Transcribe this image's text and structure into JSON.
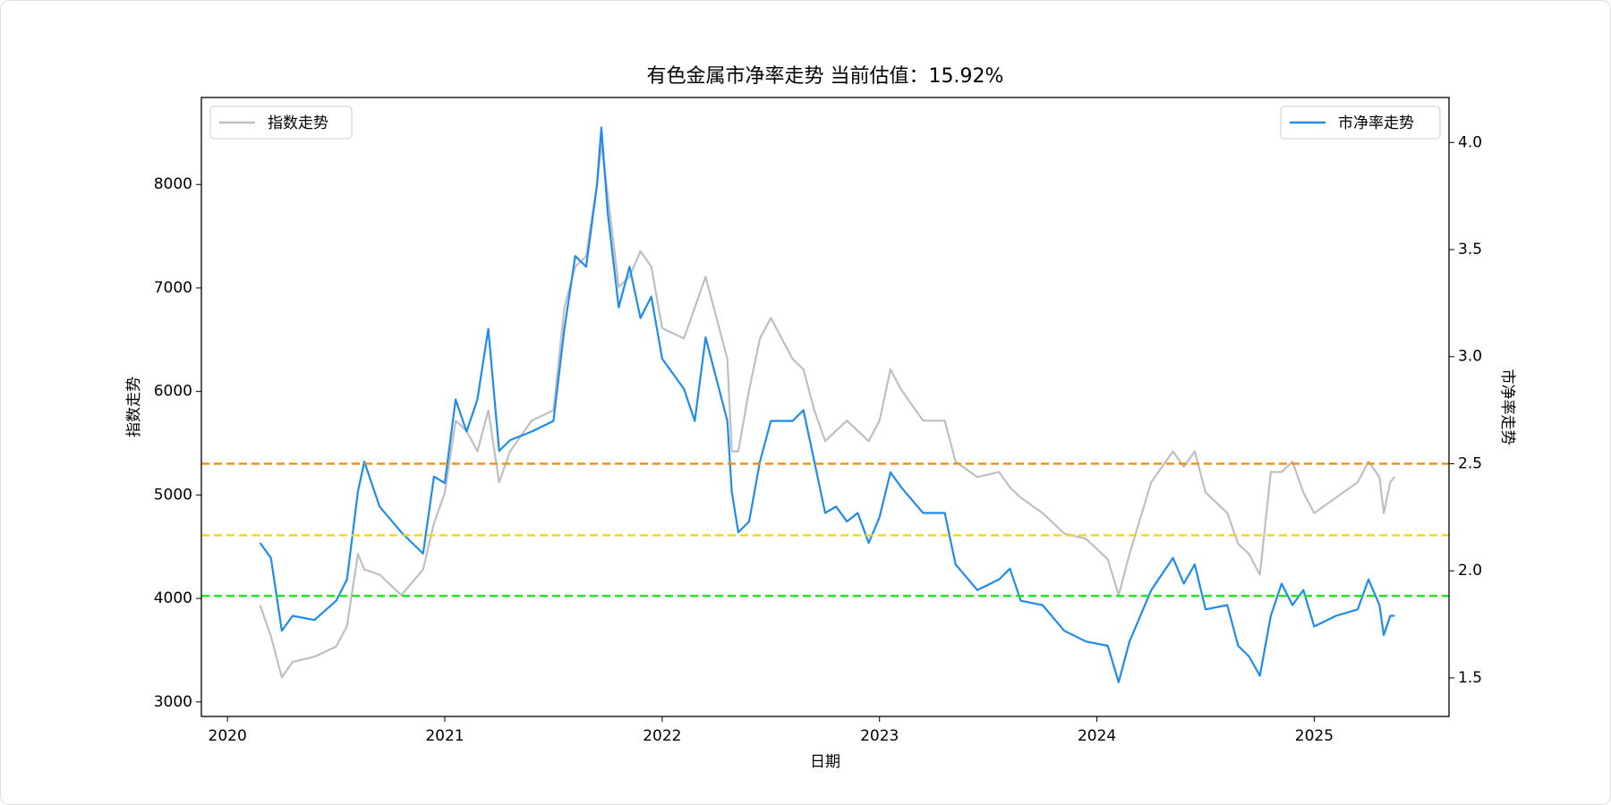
{
  "chart_data": {
    "type": "line",
    "title": "有色金属市净率走势 当前估值：15.92%",
    "x_label": "日期",
    "y_label": "指数走势",
    "y2_label": "市净率走势",
    "x": [
      2020.15,
      2020.2,
      2020.25,
      2020.3,
      2020.4,
      2020.5,
      2020.55,
      2020.6,
      2020.63,
      2020.7,
      2020.8,
      2020.9,
      2020.95,
      2021.0,
      2021.05,
      2021.1,
      2021.15,
      2021.2,
      2021.25,
      2021.3,
      2021.4,
      2021.5,
      2021.55,
      2021.6,
      2021.65,
      2021.7,
      2021.72,
      2021.75,
      2021.8,
      2021.85,
      2021.9,
      2021.95,
      2022.0,
      2022.1,
      2022.15,
      2022.2,
      2022.3,
      2022.32,
      2022.35,
      2022.4,
      2022.45,
      2022.5,
      2022.6,
      2022.65,
      2022.7,
      2022.75,
      2022.8,
      2022.85,
      2022.9,
      2022.95,
      2023.0,
      2023.05,
      2023.1,
      2023.2,
      2023.3,
      2023.35,
      2023.45,
      2023.55,
      2023.6,
      2023.65,
      2023.75,
      2023.85,
      2023.95,
      2024.05,
      2024.1,
      2024.15,
      2024.25,
      2024.35,
      2024.4,
      2024.45,
      2024.5,
      2024.6,
      2024.65,
      2024.7,
      2024.75,
      2024.8,
      2024.85,
      2024.9,
      2024.95,
      2025.0,
      2025.1,
      2025.2,
      2025.25,
      2025.3,
      2025.32,
      2025.35,
      2025.37
    ],
    "series": [
      {
        "name": "指数走势",
        "color": "#bfbfbf",
        "axis": "y",
        "legend_loc": "upper left",
        "values": [
          3933,
          3635,
          3238,
          3387,
          3437,
          3536,
          3734,
          4429,
          4280,
          4230,
          4032,
          4280,
          4726,
          5024,
          5718,
          5619,
          5421,
          5817,
          5123,
          5421,
          5718,
          5817,
          6810,
          7206,
          7306,
          8000,
          8397,
          7901,
          7008,
          7107,
          7355,
          7206,
          6611,
          6512,
          6810,
          7107,
          6313,
          5421,
          5421,
          6016,
          6512,
          6710,
          6313,
          6214,
          5817,
          5520,
          5619,
          5718,
          5619,
          5520,
          5718,
          6214,
          6016,
          5718,
          5718,
          5321,
          5173,
          5222,
          5073,
          4974,
          4825,
          4627,
          4577,
          4379,
          4032,
          4429,
          5123,
          5421,
          5272,
          5421,
          5024,
          4825,
          4528,
          4429,
          4230,
          5222,
          5222,
          5321,
          5024,
          4825,
          4974,
          5123,
          5321,
          5173,
          4825,
          5123,
          5173
        ]
      },
      {
        "name": "市净率走势",
        "color": "#1f8ceb",
        "axis": "y2",
        "legend_loc": "upper right",
        "values": [
          2.13,
          2.06,
          1.72,
          1.79,
          1.77,
          1.86,
          1.96,
          2.37,
          2.51,
          2.3,
          2.18,
          2.08,
          2.44,
          2.41,
          2.8,
          2.65,
          2.8,
          3.13,
          2.56,
          2.61,
          2.65,
          2.7,
          3.13,
          3.47,
          3.42,
          3.8,
          4.07,
          3.67,
          3.23,
          3.42,
          3.18,
          3.28,
          2.99,
          2.85,
          2.7,
          3.09,
          2.7,
          2.37,
          2.18,
          2.23,
          2.51,
          2.7,
          2.7,
          2.75,
          2.51,
          2.27,
          2.3,
          2.23,
          2.27,
          2.13,
          2.25,
          2.46,
          2.39,
          2.27,
          2.27,
          2.03,
          1.91,
          1.96,
          2.01,
          1.86,
          1.84,
          1.72,
          1.67,
          1.65,
          1.48,
          1.67,
          1.91,
          2.06,
          1.94,
          2.03,
          1.82,
          1.84,
          1.65,
          1.6,
          1.51,
          1.79,
          1.94,
          1.84,
          1.91,
          1.74,
          1.79,
          1.82,
          1.96,
          1.84,
          1.7,
          1.79,
          1.79
        ]
      }
    ],
    "hlines": [
      {
        "value": 2.5,
        "color": "#f0900a",
        "axis": "y2"
      },
      {
        "value": 2.166,
        "color": "#f2d80e",
        "axis": "y2"
      },
      {
        "value": 1.883,
        "color": "#1ee61e",
        "axis": "y2"
      }
    ],
    "xlim": [
      2019.88,
      2025.62
    ],
    "xticks": [
      2020,
      2021,
      2022,
      2023,
      2024,
      2025
    ],
    "ylim": [
      2860,
      8840
    ],
    "yticks": [
      3000,
      4000,
      5000,
      6000,
      7000,
      8000
    ],
    "y2lim": [
      1.32,
      4.21
    ],
    "y2ticks": [
      {
        "value": 1.5,
        "label": "1.5"
      },
      {
        "value": 2.0,
        "label": "2.0"
      },
      {
        "value": 2.5,
        "label": "2.5"
      },
      {
        "value": 3.0,
        "label": "3.0"
      },
      {
        "value": 3.5,
        "label": "3.5"
      },
      {
        "value": 4.0,
        "label": "4.0"
      }
    ],
    "grid": false
  }
}
